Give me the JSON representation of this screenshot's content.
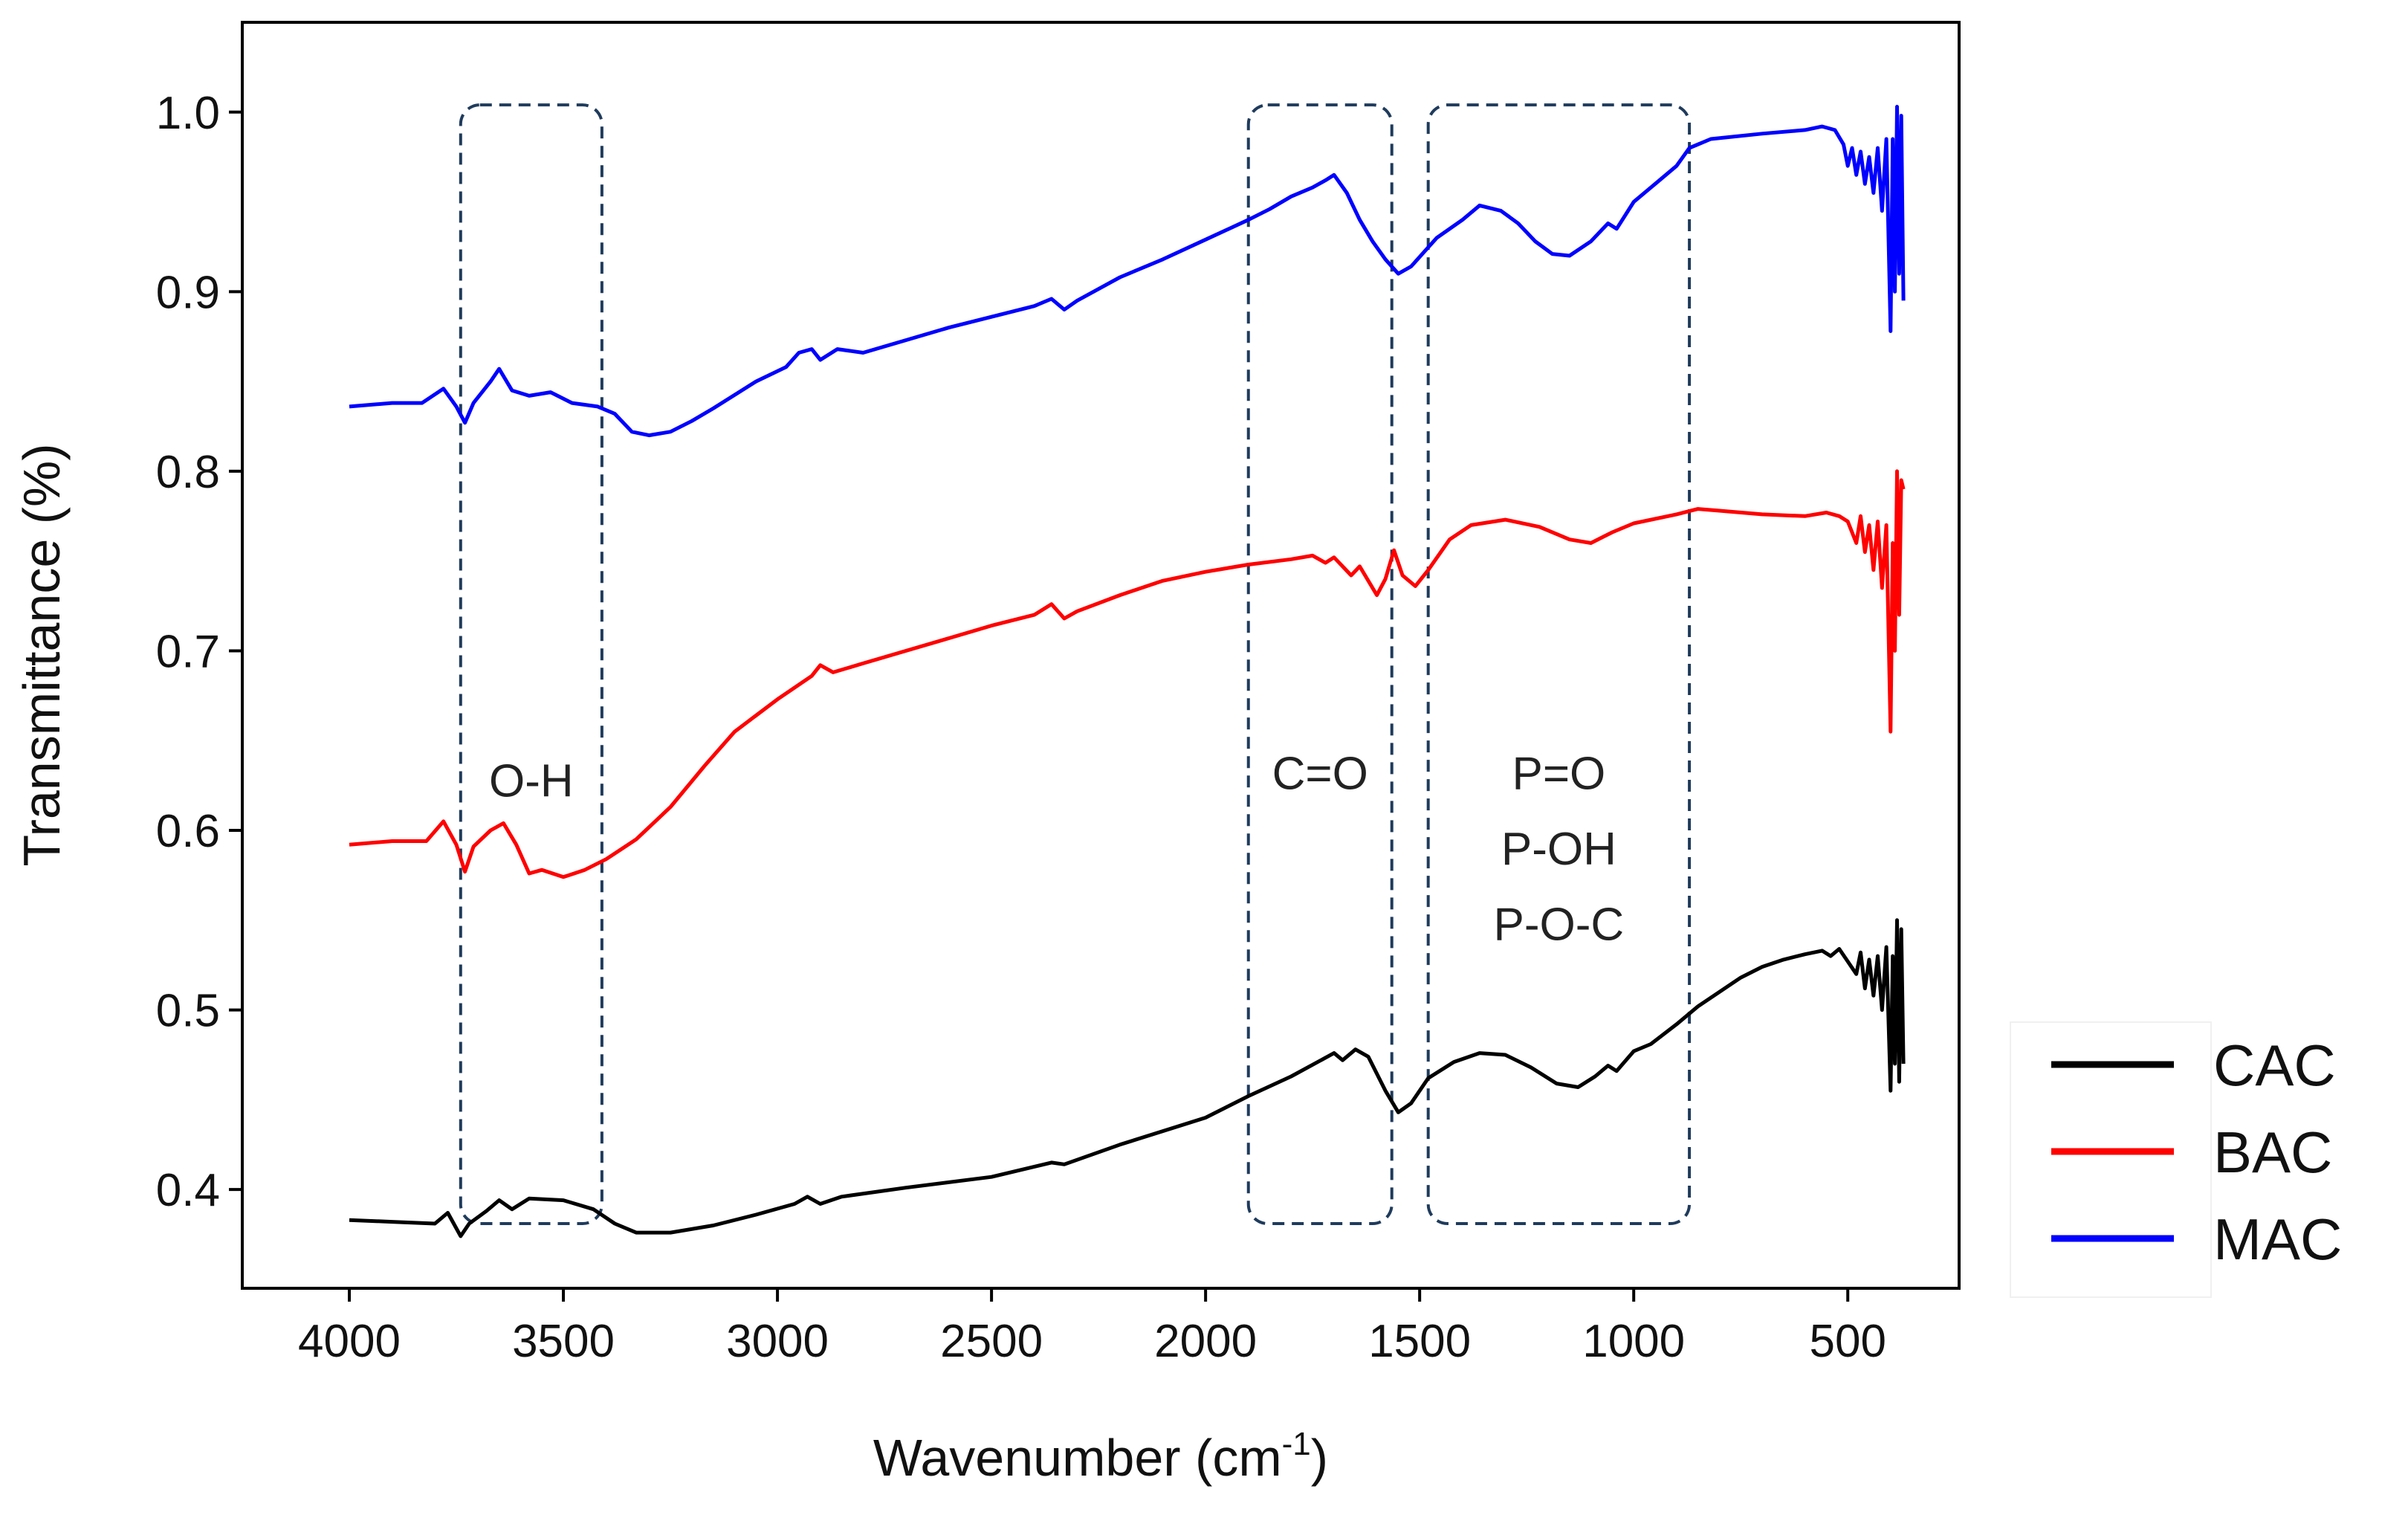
{
  "chart_data": {
    "type": "line",
    "title": "",
    "xlabel": "Wavenumber (cm",
    "xlabel_sup": "-1",
    "xlabel_end": ")",
    "ylabel": "Transmittance (%)",
    "xlim": [
      4250,
      240
    ],
    "ylim": [
      0.345,
      1.05
    ],
    "x_ticks": [
      4000,
      3500,
      3000,
      2500,
      2000,
      1500,
      1000,
      500
    ],
    "x_tick_labels": [
      "4000",
      "3500",
      "3000",
      "2500",
      "2000",
      "1500",
      "1000",
      "500"
    ],
    "y_ticks": [
      0.4,
      0.5,
      0.6,
      0.7,
      0.8,
      0.9,
      1.0
    ],
    "y_tick_labels": [
      "0.4",
      "0.5",
      "0.6",
      "0.7",
      "0.8",
      "0.9",
      "1.0"
    ],
    "legend_position": "outside-bottom-right",
    "series": [
      {
        "name": "CAC",
        "color": "#000000",
        "points": [
          [
            4000,
            0.383
          ],
          [
            3900,
            0.382
          ],
          [
            3800,
            0.381
          ],
          [
            3770,
            0.387
          ],
          [
            3740,
            0.374
          ],
          [
            3720,
            0.381
          ],
          [
            3680,
            0.388
          ],
          [
            3650,
            0.394
          ],
          [
            3620,
            0.389
          ],
          [
            3580,
            0.395
          ],
          [
            3500,
            0.394
          ],
          [
            3430,
            0.389
          ],
          [
            3380,
            0.381
          ],
          [
            3330,
            0.376
          ],
          [
            3250,
            0.376
          ],
          [
            3150,
            0.38
          ],
          [
            3050,
            0.386
          ],
          [
            2960,
            0.392
          ],
          [
            2930,
            0.396
          ],
          [
            2900,
            0.392
          ],
          [
            2850,
            0.396
          ],
          [
            2700,
            0.401
          ],
          [
            2500,
            0.407
          ],
          [
            2360,
            0.415
          ],
          [
            2330,
            0.414
          ],
          [
            2200,
            0.425
          ],
          [
            2000,
            0.44
          ],
          [
            1900,
            0.452
          ],
          [
            1800,
            0.463
          ],
          [
            1700,
            0.476
          ],
          [
            1680,
            0.472
          ],
          [
            1650,
            0.478
          ],
          [
            1620,
            0.474
          ],
          [
            1580,
            0.455
          ],
          [
            1550,
            0.443
          ],
          [
            1520,
            0.448
          ],
          [
            1480,
            0.462
          ],
          [
            1420,
            0.471
          ],
          [
            1360,
            0.476
          ],
          [
            1300,
            0.475
          ],
          [
            1240,
            0.468
          ],
          [
            1180,
            0.459
          ],
          [
            1130,
            0.457
          ],
          [
            1090,
            0.463
          ],
          [
            1060,
            0.469
          ],
          [
            1040,
            0.466
          ],
          [
            1000,
            0.477
          ],
          [
            960,
            0.481
          ],
          [
            900,
            0.492
          ],
          [
            850,
            0.502
          ],
          [
            800,
            0.51
          ],
          [
            750,
            0.518
          ],
          [
            700,
            0.524
          ],
          [
            650,
            0.528
          ],
          [
            600,
            0.531
          ],
          [
            560,
            0.533
          ],
          [
            540,
            0.53
          ],
          [
            520,
            0.534
          ],
          [
            500,
            0.527
          ],
          [
            480,
            0.52
          ],
          [
            470,
            0.532
          ],
          [
            460,
            0.512
          ],
          [
            450,
            0.528
          ],
          [
            440,
            0.508
          ],
          [
            430,
            0.53
          ],
          [
            420,
            0.5
          ],
          [
            410,
            0.535
          ],
          [
            400,
            0.455
          ],
          [
            395,
            0.53
          ],
          [
            390,
            0.47
          ],
          [
            385,
            0.55
          ],
          [
            380,
            0.46
          ],
          [
            375,
            0.545
          ],
          [
            370,
            0.47
          ]
        ]
      },
      {
        "name": "BAC",
        "color": "#ff0000",
        "points": [
          [
            4000,
            0.592
          ],
          [
            3900,
            0.594
          ],
          [
            3820,
            0.594
          ],
          [
            3780,
            0.605
          ],
          [
            3750,
            0.592
          ],
          [
            3730,
            0.577
          ],
          [
            3710,
            0.591
          ],
          [
            3670,
            0.6
          ],
          [
            3640,
            0.604
          ],
          [
            3610,
            0.592
          ],
          [
            3580,
            0.576
          ],
          [
            3550,
            0.578
          ],
          [
            3500,
            0.574
          ],
          [
            3450,
            0.578
          ],
          [
            3400,
            0.584
          ],
          [
            3330,
            0.595
          ],
          [
            3250,
            0.613
          ],
          [
            3170,
            0.636
          ],
          [
            3100,
            0.655
          ],
          [
            3000,
            0.673
          ],
          [
            2920,
            0.686
          ],
          [
            2900,
            0.692
          ],
          [
            2870,
            0.688
          ],
          [
            2800,
            0.693
          ],
          [
            2700,
            0.7
          ],
          [
            2600,
            0.707
          ],
          [
            2500,
            0.714
          ],
          [
            2400,
            0.72
          ],
          [
            2360,
            0.726
          ],
          [
            2330,
            0.718
          ],
          [
            2300,
            0.722
          ],
          [
            2200,
            0.731
          ],
          [
            2100,
            0.739
          ],
          [
            2000,
            0.744
          ],
          [
            1900,
            0.748
          ],
          [
            1800,
            0.751
          ],
          [
            1750,
            0.753
          ],
          [
            1720,
            0.749
          ],
          [
            1700,
            0.752
          ],
          [
            1660,
            0.742
          ],
          [
            1640,
            0.747
          ],
          [
            1600,
            0.731
          ],
          [
            1580,
            0.74
          ],
          [
            1560,
            0.756
          ],
          [
            1540,
            0.742
          ],
          [
            1510,
            0.736
          ],
          [
            1480,
            0.745
          ],
          [
            1430,
            0.762
          ],
          [
            1380,
            0.77
          ],
          [
            1300,
            0.773
          ],
          [
            1220,
            0.769
          ],
          [
            1150,
            0.762
          ],
          [
            1100,
            0.76
          ],
          [
            1050,
            0.766
          ],
          [
            1000,
            0.771
          ],
          [
            900,
            0.776
          ],
          [
            850,
            0.779
          ],
          [
            800,
            0.778
          ],
          [
            700,
            0.776
          ],
          [
            600,
            0.775
          ],
          [
            550,
            0.777
          ],
          [
            520,
            0.775
          ],
          [
            500,
            0.772
          ],
          [
            480,
            0.76
          ],
          [
            470,
            0.775
          ],
          [
            460,
            0.755
          ],
          [
            450,
            0.77
          ],
          [
            440,
            0.745
          ],
          [
            430,
            0.772
          ],
          [
            420,
            0.735
          ],
          [
            410,
            0.77
          ],
          [
            400,
            0.655
          ],
          [
            395,
            0.76
          ],
          [
            390,
            0.7
          ],
          [
            385,
            0.8
          ],
          [
            380,
            0.72
          ],
          [
            375,
            0.795
          ],
          [
            370,
            0.79
          ]
        ]
      },
      {
        "name": "MAC",
        "color": "#0000ff",
        "points": [
          [
            4000,
            0.836
          ],
          [
            3900,
            0.838
          ],
          [
            3830,
            0.838
          ],
          [
            3780,
            0.846
          ],
          [
            3750,
            0.836
          ],
          [
            3730,
            0.827
          ],
          [
            3710,
            0.838
          ],
          [
            3670,
            0.85
          ],
          [
            3650,
            0.857
          ],
          [
            3620,
            0.845
          ],
          [
            3580,
            0.842
          ],
          [
            3530,
            0.844
          ],
          [
            3480,
            0.838
          ],
          [
            3420,
            0.836
          ],
          [
            3380,
            0.832
          ],
          [
            3340,
            0.822
          ],
          [
            3300,
            0.82
          ],
          [
            3250,
            0.822
          ],
          [
            3200,
            0.828
          ],
          [
            3150,
            0.835
          ],
          [
            3050,
            0.85
          ],
          [
            2980,
            0.858
          ],
          [
            2950,
            0.866
          ],
          [
            2920,
            0.868
          ],
          [
            2900,
            0.862
          ],
          [
            2860,
            0.868
          ],
          [
            2800,
            0.866
          ],
          [
            2700,
            0.873
          ],
          [
            2600,
            0.88
          ],
          [
            2500,
            0.886
          ],
          [
            2400,
            0.892
          ],
          [
            2360,
            0.896
          ],
          [
            2330,
            0.89
          ],
          [
            2300,
            0.895
          ],
          [
            2200,
            0.908
          ],
          [
            2100,
            0.918
          ],
          [
            2000,
            0.929
          ],
          [
            1900,
            0.94
          ],
          [
            1850,
            0.946
          ],
          [
            1800,
            0.953
          ],
          [
            1750,
            0.958
          ],
          [
            1720,
            0.962
          ],
          [
            1700,
            0.965
          ],
          [
            1670,
            0.955
          ],
          [
            1640,
            0.94
          ],
          [
            1610,
            0.928
          ],
          [
            1580,
            0.918
          ],
          [
            1550,
            0.91
          ],
          [
            1520,
            0.914
          ],
          [
            1490,
            0.922
          ],
          [
            1460,
            0.93
          ],
          [
            1430,
            0.935
          ],
          [
            1400,
            0.94
          ],
          [
            1360,
            0.948
          ],
          [
            1310,
            0.945
          ],
          [
            1270,
            0.938
          ],
          [
            1230,
            0.928
          ],
          [
            1190,
            0.921
          ],
          [
            1150,
            0.92
          ],
          [
            1100,
            0.928
          ],
          [
            1060,
            0.938
          ],
          [
            1040,
            0.935
          ],
          [
            1000,
            0.95
          ],
          [
            950,
            0.96
          ],
          [
            900,
            0.97
          ],
          [
            870,
            0.98
          ],
          [
            820,
            0.985
          ],
          [
            700,
            0.988
          ],
          [
            600,
            0.99
          ],
          [
            560,
            0.992
          ],
          [
            530,
            0.99
          ],
          [
            510,
            0.982
          ],
          [
            500,
            0.97
          ],
          [
            490,
            0.98
          ],
          [
            480,
            0.965
          ],
          [
            470,
            0.978
          ],
          [
            460,
            0.96
          ],
          [
            450,
            0.975
          ],
          [
            440,
            0.955
          ],
          [
            430,
            0.98
          ],
          [
            420,
            0.945
          ],
          [
            410,
            0.985
          ],
          [
            400,
            0.878
          ],
          [
            395,
            0.985
          ],
          [
            390,
            0.9
          ],
          [
            385,
            1.003
          ],
          [
            380,
            0.91
          ],
          [
            375,
            0.998
          ],
          [
            370,
            0.895
          ]
        ]
      }
    ],
    "regions": [
      {
        "label_lines": [
          "O-H"
        ],
        "x_from": 3740,
        "x_to": 3410,
        "y_from": 0.381,
        "y_to": 1.004,
        "label_y": 0.628
      },
      {
        "label_lines": [
          "C=O"
        ],
        "x_from": 1900,
        "x_to": 1565,
        "y_from": 0.381,
        "y_to": 1.004,
        "label_y": 0.632
      },
      {
        "label_lines": [
          "P=O",
          "P-OH",
          "P-O-C"
        ],
        "x_from": 1480,
        "x_to": 870,
        "y_from": 0.381,
        "y_to": 1.004,
        "label_y": 0.632,
        "line_step": 0.042
      }
    ],
    "region_color": "#1f3b5c"
  }
}
